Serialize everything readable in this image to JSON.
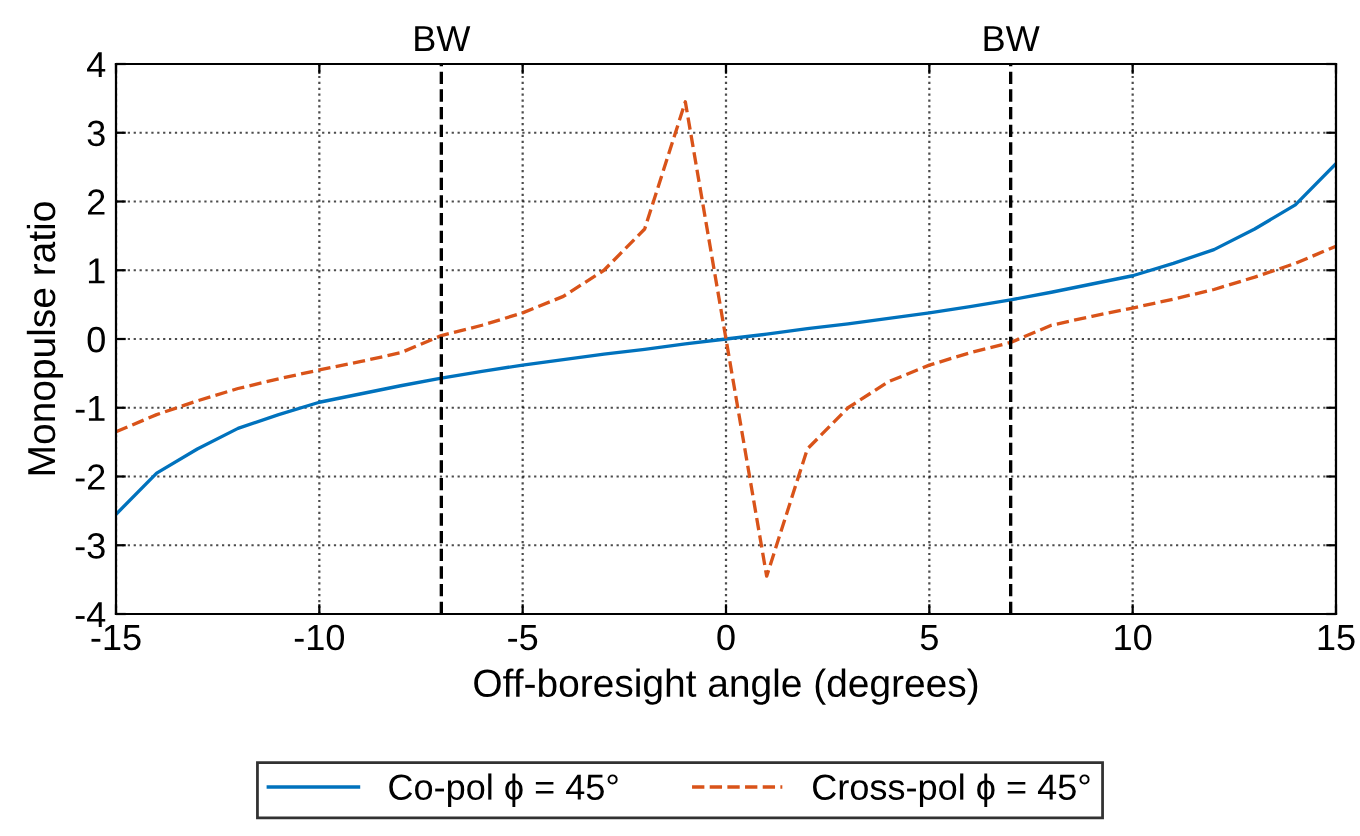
{
  "chart_data": {
    "type": "line",
    "xlabel": "Off-boresight angle (degrees)",
    "ylabel": "Monopulse ratio",
    "x": [
      -15,
      -14,
      -13,
      -12,
      -11,
      -10,
      -9,
      -8,
      -7,
      -6,
      -5,
      -4,
      -3,
      -2,
      -1,
      0,
      1,
      2,
      3,
      4,
      5,
      6,
      7,
      8,
      9,
      10,
      11,
      12,
      13,
      14,
      15
    ],
    "series": [
      {
        "name": "Co-pol ϕ = 45°",
        "color": "#0072bd",
        "line_style": "solid",
        "values": [
          -2.55,
          -1.95,
          -1.6,
          -1.3,
          -1.1,
          -0.92,
          -0.8,
          -0.68,
          -0.57,
          -0.47,
          -0.38,
          -0.3,
          -0.22,
          -0.15,
          -0.07,
          0,
          0.07,
          0.15,
          0.22,
          0.3,
          0.38,
          0.47,
          0.57,
          0.68,
          0.8,
          0.92,
          1.1,
          1.3,
          1.6,
          1.95,
          2.55
        ]
      },
      {
        "name": "Cross-pol ϕ = 45°",
        "color": "#d95319",
        "line_style": "dashed",
        "values": [
          -1.35,
          -1.1,
          -0.9,
          -0.72,
          -0.58,
          -0.45,
          -0.33,
          -0.2,
          0.05,
          0.2,
          0.38,
          0.62,
          1.0,
          1.6,
          3.45,
          0,
          -3.45,
          -1.6,
          -1.0,
          -0.62,
          -0.38,
          -0.2,
          -0.05,
          0.2,
          0.33,
          0.45,
          0.58,
          0.72,
          0.9,
          1.1,
          1.35
        ]
      }
    ],
    "xlim": [
      -15,
      15
    ],
    "xticks": [
      -15,
      -10,
      -5,
      0,
      5,
      10,
      15
    ],
    "ylim": [
      -4,
      4
    ],
    "yticks": [
      -4,
      -3,
      -2,
      -1,
      0,
      1,
      2,
      3,
      4
    ],
    "ref_lines": [
      {
        "axis": "x",
        "value": -7,
        "label": "BW",
        "color": "#000000",
        "line_style": "dashed"
      },
      {
        "axis": "x",
        "value": 7,
        "label": "BW",
        "color": "#000000",
        "line_style": "dashed"
      }
    ],
    "grid": true,
    "legend": "bottom",
    "marker": "none"
  }
}
